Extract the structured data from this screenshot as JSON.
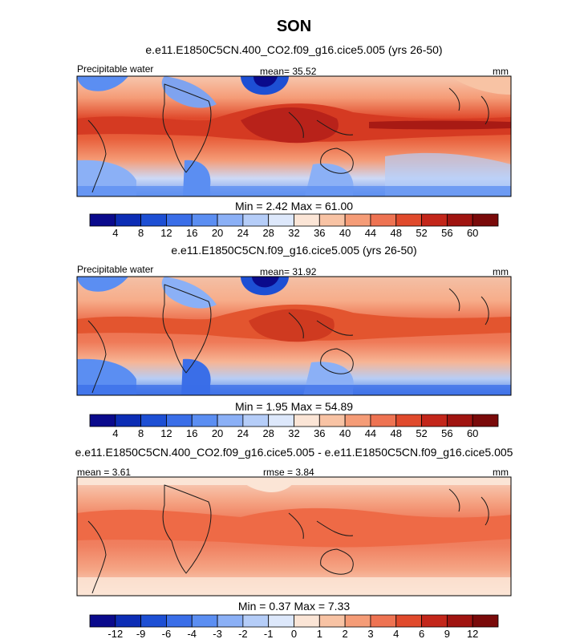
{
  "figure": {
    "title": "SON"
  },
  "panels": [
    {
      "subtitle": "e.e11.E1850C5CN.400_CO2.f09_g16.cice5.005 (yrs 26-50)",
      "left_label": "Precipitable water",
      "center_label": "mean=  35.52",
      "right_label": "mm",
      "stats": "Min =   2.42 Max =  61.00",
      "colorbar_ticks": [
        "4",
        "8",
        "12",
        "16",
        "20",
        "24",
        "28",
        "32",
        "36",
        "40",
        "44",
        "48",
        "52",
        "56",
        "60"
      ]
    },
    {
      "subtitle": "e.e11.E1850C5CN.f09_g16.cice5.005 (yrs 26-50)",
      "left_label": "Precipitable water",
      "center_label": "mean=  31.92",
      "right_label": "mm",
      "stats": "Min =   1.95 Max =  54.89",
      "colorbar_ticks": [
        "4",
        "8",
        "12",
        "16",
        "20",
        "24",
        "28",
        "32",
        "36",
        "40",
        "44",
        "48",
        "52",
        "56",
        "60"
      ]
    },
    {
      "subtitle": "e.e11.E1850C5CN.400_CO2.f09_g16.cice5.005 - e.e11.E1850C5CN.f09_g16.cice5.005",
      "left_label": "mean =   3.61",
      "center_label": "rmse =   3.84",
      "right_label": "mm",
      "stats": "Min =   0.37 Max =   7.33",
      "colorbar_ticks": [
        "-12",
        "-9",
        "-6",
        "-4",
        "-3",
        "-2",
        "-1",
        "0",
        "1",
        "2",
        "3",
        "4",
        "6",
        "9",
        "12"
      ]
    }
  ],
  "colors": {
    "colorbar": [
      "#0a0a8c",
      "#0c2db5",
      "#1d4fd4",
      "#3a6ee8",
      "#5b8ef2",
      "#8bb0f6",
      "#b5cdf8",
      "#dde8fb",
      "#fbe5d6",
      "#f8c3a4",
      "#f59c77",
      "#ee7352",
      "#e04a2c",
      "#c3261a",
      "#a01410",
      "#7a0a0a"
    ],
    "ocean_diff": "#f5a585",
    "ocean_moist": "#f0a07e"
  },
  "chart_data": [
    {
      "type": "heatmap",
      "title": "e.e11.E1850C5CN.400_CO2.f09_g16.cice5.005 (yrs 26-50)",
      "variable": "Precipitable water",
      "units": "mm",
      "mean": 35.52,
      "min": 2.42,
      "max": 61.0,
      "levels": [
        4,
        8,
        12,
        16,
        20,
        24,
        28,
        32,
        36,
        40,
        44,
        48,
        52,
        56,
        60
      ]
    },
    {
      "type": "heatmap",
      "title": "e.e11.E1850C5CN.f09_g16.cice5.005 (yrs 26-50)",
      "variable": "Precipitable water",
      "units": "mm",
      "mean": 31.92,
      "min": 1.95,
      "max": 54.89,
      "levels": [
        4,
        8,
        12,
        16,
        20,
        24,
        28,
        32,
        36,
        40,
        44,
        48,
        52,
        56,
        60
      ]
    },
    {
      "type": "heatmap",
      "title": "e.e11.E1850C5CN.400_CO2.f09_g16.cice5.005 - e.e11.E1850C5CN.f09_g16.cice5.005",
      "units": "mm",
      "mean": 3.61,
      "rmse": 3.84,
      "min": 0.37,
      "max": 7.33,
      "levels": [
        -12,
        -9,
        -6,
        -4,
        -3,
        -2,
        -1,
        0,
        1,
        2,
        3,
        4,
        6,
        9,
        12
      ]
    }
  ]
}
